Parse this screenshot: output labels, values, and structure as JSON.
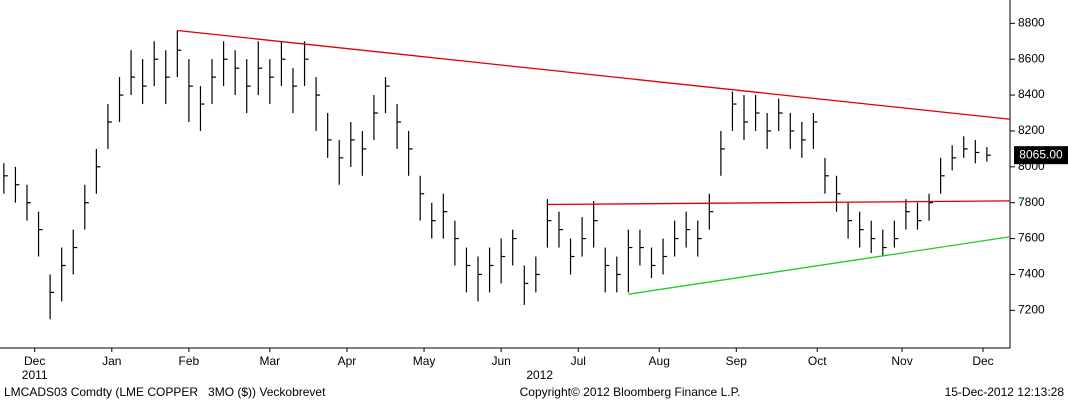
{
  "chart_data": {
    "type": "hlc",
    "x": [
      1,
      4,
      7,
      10,
      13,
      16,
      19,
      22,
      25,
      28,
      31,
      34,
      37,
      40,
      43,
      46,
      49,
      52,
      55,
      58,
      61,
      64,
      67,
      70,
      73,
      76,
      79,
      82,
      85,
      88,
      91,
      94,
      97,
      100,
      103,
      106,
      109,
      112,
      115,
      118,
      121,
      124,
      127,
      130,
      133,
      136,
      139,
      142,
      145,
      148,
      151,
      154,
      157,
      160,
      163,
      166,
      169,
      172,
      175,
      178,
      181,
      184,
      187,
      190,
      193,
      196,
      199,
      202,
      205,
      208,
      211,
      214,
      217,
      220,
      223,
      226,
      229,
      232,
      235,
      238,
      241,
      244,
      247,
      250,
      253,
      256
    ],
    "high": [
      8020,
      8000,
      7900,
      7750,
      7400,
      7550,
      7650,
      7900,
      8100,
      8350,
      8500,
      8650,
      8600,
      8700,
      8650,
      8760,
      8600,
      8450,
      8600,
      8700,
      8650,
      8600,
      8700,
      8600,
      8700,
      8550,
      8700,
      8500,
      8300,
      8150,
      8250,
      8200,
      8400,
      8500,
      8350,
      8200,
      7950,
      7800,
      7850,
      7700,
      7550,
      7500,
      7550,
      7600,
      7650,
      7450,
      7500,
      7820,
      7750,
      7600,
      7720,
      7810,
      7550,
      7500,
      7650,
      7650,
      7550,
      7600,
      7700,
      7750,
      7700,
      7850,
      8200,
      8420,
      8400,
      8400,
      8300,
      8380,
      8300,
      8250,
      8300,
      8050,
      7950,
      7800,
      7750,
      7700,
      7650,
      7700,
      7820,
      7800,
      7850,
      8050,
      8120,
      8170,
      8150,
      8110
    ],
    "low": [
      7850,
      7800,
      7700,
      7500,
      7150,
      7250,
      7400,
      7650,
      7850,
      8100,
      8250,
      8400,
      8350,
      8450,
      8350,
      8500,
      8250,
      8200,
      8350,
      8450,
      8400,
      8300,
      8400,
      8350,
      8450,
      8300,
      8450,
      8200,
      8050,
      7900,
      8000,
      7950,
      8150,
      8300,
      8100,
      7950,
      7700,
      7600,
      7600,
      7450,
      7300,
      7250,
      7300,
      7350,
      7450,
      7230,
      7300,
      7550,
      7550,
      7400,
      7500,
      7550,
      7300,
      7300,
      7300,
      7450,
      7380,
      7400,
      7500,
      7550,
      7500,
      7650,
      7950,
      8200,
      8150,
      8200,
      8100,
      8200,
      8100,
      8050,
      8100,
      7850,
      7750,
      7600,
      7550,
      7520,
      7500,
      7550,
      7650,
      7650,
      7700,
      7850,
      7980,
      8050,
      8020,
      8030
    ],
    "close": [
      7950,
      7900,
      7800,
      7650,
      7300,
      7450,
      7550,
      7800,
      8000,
      8250,
      8400,
      8500,
      8450,
      8600,
      8500,
      8650,
      8450,
      8350,
      8500,
      8600,
      8550,
      8450,
      8550,
      8500,
      8600,
      8450,
      8600,
      8400,
      8150,
      8050,
      8150,
      8100,
      8300,
      8450,
      8250,
      8100,
      7850,
      7700,
      7750,
      7600,
      7450,
      7400,
      7450,
      7500,
      7600,
      7350,
      7400,
      7700,
      7650,
      7500,
      7600,
      7700,
      7450,
      7400,
      7550,
      7550,
      7450,
      7500,
      7600,
      7650,
      7600,
      7750,
      8100,
      8350,
      8250,
      8300,
      8200,
      8300,
      8200,
      8150,
      8250,
      7950,
      7850,
      7700,
      7650,
      7600,
      7550,
      7600,
      7750,
      7700,
      7800,
      7950,
      8050,
      8100,
      8080,
      8065
    ],
    "color": "#000000",
    "xlim": [
      0,
      262
    ],
    "xticks": [
      {
        "value": 9,
        "label": "Dec"
      },
      {
        "value": 29,
        "label": "Jan"
      },
      {
        "value": 49,
        "label": "Feb"
      },
      {
        "value": 70,
        "label": "Mar"
      },
      {
        "value": 90,
        "label": "Apr"
      },
      {
        "value": 110,
        "label": "May"
      },
      {
        "value": 130,
        "label": "Jun"
      },
      {
        "value": 150,
        "label": "Jul"
      },
      {
        "value": 171,
        "label": "Aug"
      },
      {
        "value": 191,
        "label": "Sep"
      },
      {
        "value": 212,
        "label": "Oct"
      },
      {
        "value": 234,
        "label": "Nov"
      },
      {
        "value": 255,
        "label": "Dec"
      }
    ],
    "year_labels": [
      {
        "value": 9,
        "label": "2011"
      },
      {
        "value": 140,
        "label": "2012"
      }
    ],
    "ylim": [
      6990,
      8930
    ],
    "yticks": [
      7200,
      7400,
      7600,
      7800,
      8000,
      8200,
      8400,
      8600,
      8800
    ],
    "grid": false,
    "last_price": {
      "value": 8065,
      "label": "8065.00"
    },
    "trend_lines": [
      {
        "color": "#e00000",
        "x": [
          46,
          262
        ],
        "y": [
          8760,
          8265
        ]
      },
      {
        "color": "#e00000",
        "x": [
          142,
          262
        ],
        "y": [
          7790,
          7810
        ]
      },
      {
        "color": "#22cc22",
        "x": [
          163,
          262
        ],
        "y": [
          7290,
          7610
        ]
      }
    ],
    "footer": {
      "security": "LMCADS03 Comdty (LME COPPER   3MO ($)) Veckobrevet",
      "copyright": "Copyright© 2012 Bloomberg Finance L.P.",
      "timestamp": "15-Dec-2012 12:13:28"
    }
  }
}
